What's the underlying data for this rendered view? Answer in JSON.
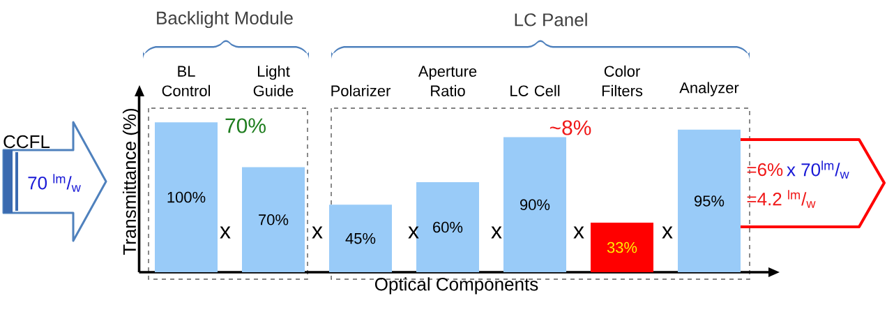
{
  "chart_data": {
    "type": "bar",
    "xlabel": "Optical Components",
    "ylabel": "Transmittance (%)",
    "categories": [
      "BL Control",
      "Light Guide",
      "Polarizer",
      "Aperture Ratio",
      "LC Cell",
      "Color Filters",
      "Analyzer"
    ],
    "values": [
      100,
      70,
      45,
      60,
      90,
      33,
      95
    ],
    "colors": [
      "#99cbf8",
      "#99cbf8",
      "#99cbf8",
      "#99cbf8",
      "#99cbf8",
      "#ff0000",
      "#99cbf8"
    ],
    "value_labels": [
      "100%",
      "70%",
      "45%",
      "60%",
      "90%",
      "33%",
      "95%"
    ],
    "ylim": [
      0,
      121
    ],
    "tick_labels": "x",
    "annotations": [
      "Backlight Module",
      "LC Panel",
      "70%",
      "~8%",
      "x",
      "x",
      "x",
      "x",
      "x",
      "x",
      "CCFL",
      "70 $^{lm}$/$_{w}$",
      "=6%",
      "x 70$^{lm}$/$_{w}$",
      "=4.2 $^{lm}$/$_{w}$"
    ]
  }
}
